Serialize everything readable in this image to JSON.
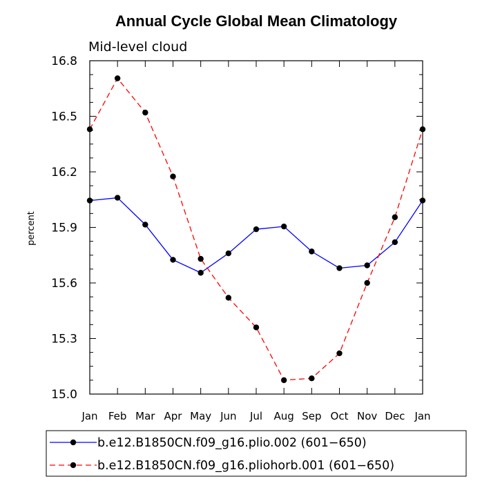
{
  "chart_data": {
    "type": "line",
    "title": "Annual Cycle Global Mean Climatology",
    "subtitle": "Mid-level cloud",
    "xlabel": "",
    "ylabel": "percent",
    "categories": [
      "Jan",
      "Feb",
      "Mar",
      "Apr",
      "May",
      "Jun",
      "Jul",
      "Aug",
      "Sep",
      "Oct",
      "Nov",
      "Dec",
      "Jan"
    ],
    "ylim": [
      15.0,
      16.8
    ],
    "yticks": [
      "15.0",
      "15.3",
      "15.6",
      "15.9",
      "16.2",
      "16.5",
      "16.8"
    ],
    "series": [
      {
        "name": "b.e12.B1850CN.f09_g16.plio.002 (601−650)",
        "color": "#0000ff",
        "dash": "solid",
        "values": [
          16.045,
          16.06,
          15.915,
          15.725,
          15.655,
          15.76,
          15.89,
          15.905,
          15.77,
          15.68,
          15.695,
          15.82,
          16.045
        ]
      },
      {
        "name": "b.e12.B1850CN.f09_g16.pliohorb.001 (601−650)",
        "color": "#ff0000",
        "dash": "dashed",
        "values": [
          16.43,
          16.705,
          16.52,
          16.175,
          15.73,
          15.52,
          15.36,
          15.075,
          15.085,
          15.22,
          15.6,
          15.955,
          16.43
        ]
      }
    ],
    "legend_position": "bottom"
  }
}
